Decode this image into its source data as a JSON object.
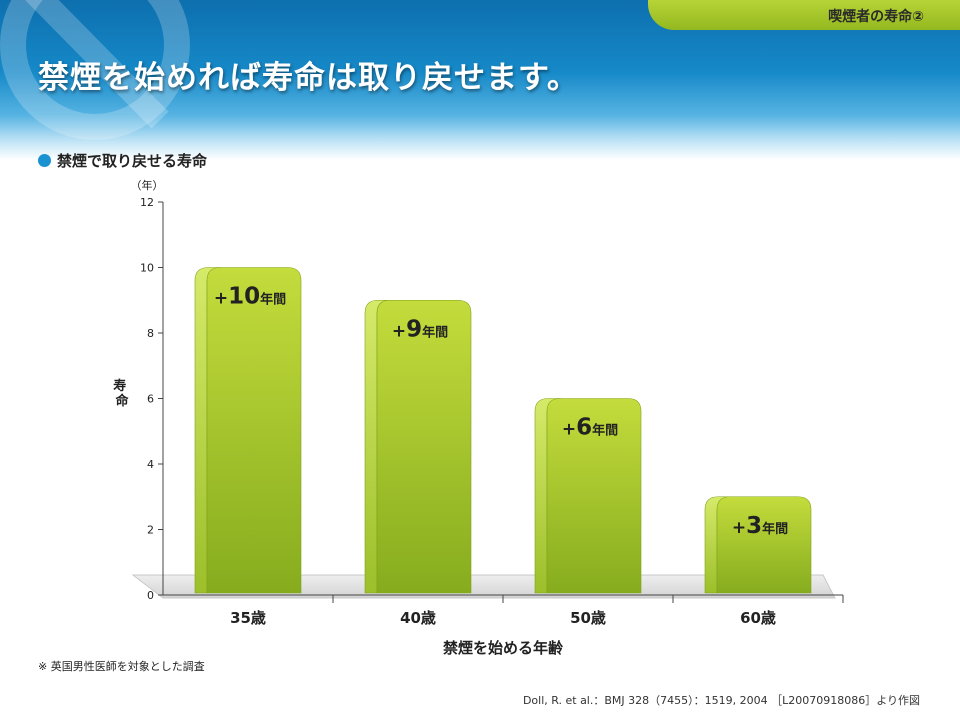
{
  "slide_tab": {
    "label": "喫煙者の寿命②"
  },
  "title": "禁煙を始めれば寿命は取り戻せます。",
  "section_label": "禁煙で取り戻せる寿命",
  "footnote": "※ 英国男性医師を対象とした調査",
  "citation": "Doll, R. et al.：BMJ 328（7455）：1519, 2004 ［L20070918086］より作図",
  "colors": {
    "bar_top": "#c4dc3c",
    "bar_bottom": "#86ac1e",
    "header": "#1689c8",
    "tab": "#a8c82b"
  },
  "chart_data": {
    "type": "bar",
    "categories": [
      "35歳",
      "40歳",
      "50歳",
      "60歳"
    ],
    "values": [
      10,
      9,
      6,
      3
    ],
    "data_labels": [
      {
        "prefix": "+",
        "number": "10",
        "suffix": "年間"
      },
      {
        "prefix": "+",
        "number": "9",
        "suffix": "年間"
      },
      {
        "prefix": "+",
        "number": "6",
        "suffix": "年間"
      },
      {
        "prefix": "+",
        "number": "3",
        "suffix": "年間"
      }
    ],
    "xlabel": "禁煙を始める年齢",
    "ylabel": "寿命",
    "yunit": "（年）",
    "ylim": [
      0,
      12
    ],
    "yticks": [
      "0",
      "2",
      "4",
      "6",
      "8",
      "10",
      "12"
    ],
    "grid": false,
    "legend": "none"
  }
}
